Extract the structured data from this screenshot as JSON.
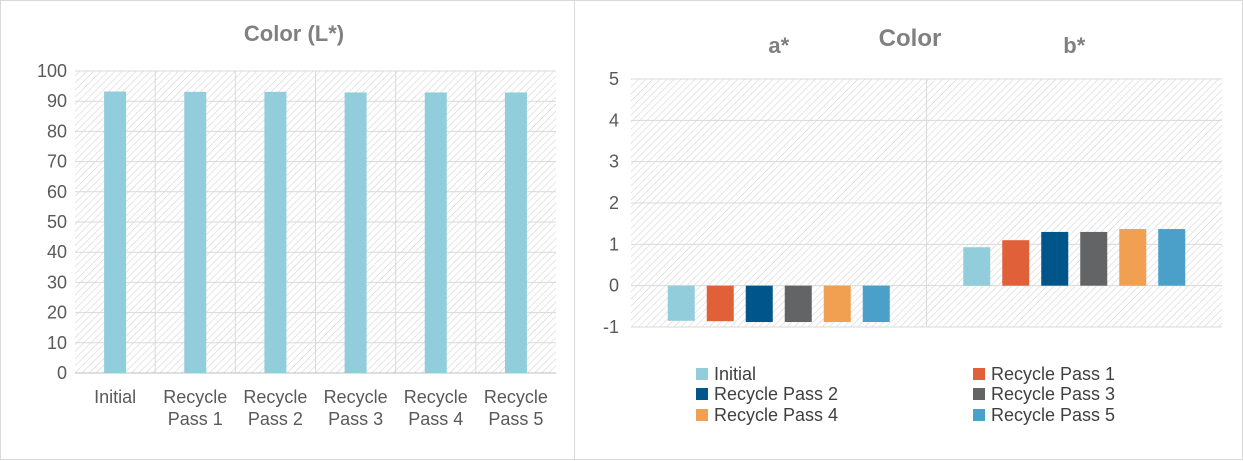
{
  "chart_data": [
    {
      "type": "bar",
      "title": "Color (L*)",
      "categories": [
        [
          "Initial"
        ],
        [
          "Recycle",
          "Pass 1"
        ],
        [
          "Recycle",
          "Pass 2"
        ],
        [
          "Recycle",
          "Pass 3"
        ],
        [
          "Recycle",
          "Pass 4"
        ],
        [
          "Recycle",
          "Pass 5"
        ]
      ],
      "values": [
        93.2,
        93.1,
        93.1,
        92.9,
        92.9,
        92.9
      ],
      "ylim": [
        0,
        100
      ],
      "yticks": [
        0,
        10,
        20,
        30,
        40,
        50,
        60,
        70,
        80,
        90,
        100
      ],
      "bar_color": "#92CDDC",
      "grid": true,
      "xlabel": "",
      "ylabel": ""
    },
    {
      "type": "bar",
      "title": "Color",
      "categories": [
        "a*",
        "b*"
      ],
      "series": [
        {
          "name": "Initial",
          "values": [
            -0.85,
            0.93
          ],
          "color": "#92CDDC"
        },
        {
          "name": "Recycle Pass 1",
          "values": [
            -0.86,
            1.1
          ],
          "color": "#E0603A"
        },
        {
          "name": "Recycle Pass 2",
          "values": [
            -0.88,
            1.3
          ],
          "color": "#00558A"
        },
        {
          "name": "Recycle Pass 3",
          "values": [
            -0.88,
            1.3
          ],
          "color": "#636466"
        },
        {
          "name": "Recycle Pass 4",
          "values": [
            -0.88,
            1.37
          ],
          "color": "#F0A050"
        },
        {
          "name": "Recycle Pass 5",
          "values": [
            -0.88,
            1.37
          ],
          "color": "#4AA0C8"
        }
      ],
      "ylim": [
        -1,
        5
      ],
      "yticks": [
        -1,
        0,
        1,
        2,
        3,
        4,
        5
      ],
      "legend_position": "bottom",
      "grid": true,
      "xlabel": "",
      "ylabel": ""
    }
  ]
}
